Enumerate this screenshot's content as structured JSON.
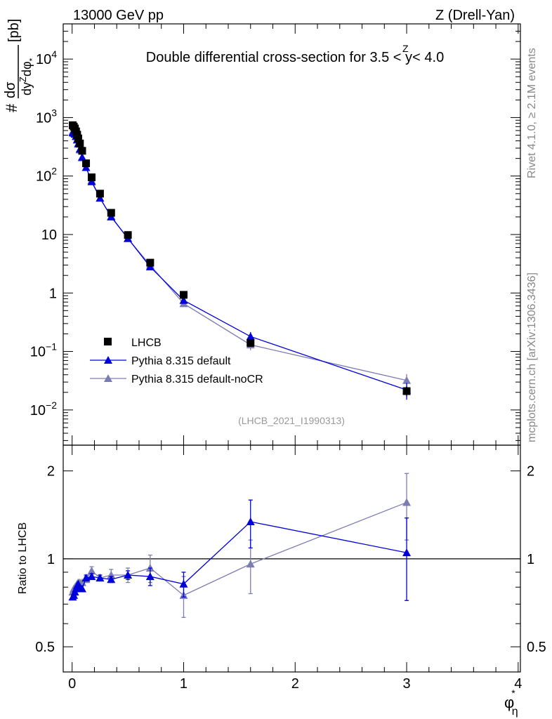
{
  "header": {
    "left": "13000 GeV pp",
    "right": "Z (Drell-Yan)"
  },
  "side_labels": {
    "rivet": "Rivet 4.1.0, ≥ 2.1M events",
    "mcplots": "mcplots.cern.ch [arXiv:1306.3436]"
  },
  "analysis_id": "(LHCB_2021_I1990313)",
  "colors": {
    "data": "#000000",
    "default": "#0000dd",
    "noCR": "#7c7cb4",
    "side_text": "#888888"
  },
  "chart_data": [
    {
      "type": "scatter",
      "scale": "log",
      "title": "Double differential cross-section for 3.5 < y^Z < 4.0",
      "title_parts": {
        "pre": "Double differential cross-section for 3.5 < ",
        "var": "y",
        "sup": "Z",
        "post": " < 4.0"
      },
      "ylabel": "d²σ / dy^Z dφ*_η [pb]",
      "ylabel_parts": {
        "num": "dσ",
        "den": "dy",
        "den_sup": "Z",
        "den_tail": "dφ",
        "den_sub": "*",
        "unit": "[pb]",
        "hash": "#"
      },
      "xlim": [
        -0.08,
        4.02
      ],
      "ylim": [
        0.0025,
        40000
      ],
      "y_ticks": [
        {
          "value": 0.01,
          "base": "10",
          "exp": "−2"
        },
        {
          "value": 0.1,
          "base": "10",
          "exp": "−1"
        },
        {
          "value": 1,
          "base": "1",
          "exp": ""
        },
        {
          "value": 10,
          "base": "10",
          "exp": ""
        },
        {
          "value": 100,
          "base": "10",
          "exp": "2"
        },
        {
          "value": 1000,
          "base": "10",
          "exp": "3"
        },
        {
          "value": 10000,
          "base": "10",
          "exp": "4"
        }
      ],
      "legend_position": "bottom-left",
      "series": [
        {
          "name": "LHCB",
          "marker": "square",
          "x": [
            0.005,
            0.015,
            0.025,
            0.035,
            0.045,
            0.055,
            0.07,
            0.09,
            0.125,
            0.175,
            0.25,
            0.35,
            0.5,
            0.7,
            1.0,
            1.6,
            3.0
          ],
          "y": [
            740,
            700,
            650,
            580,
            510,
            440,
            360,
            270,
            165,
            95,
            50,
            23.5,
            9.8,
            3.3,
            0.93,
            0.14,
            0.021
          ],
          "yerr": [
            0,
            0,
            0,
            0,
            0,
            0,
            0,
            0,
            0,
            0,
            0,
            0,
            0,
            0,
            0,
            0.02,
            0.004
          ]
        },
        {
          "name": "Pythia 8.315 default",
          "marker": "triangle",
          "x": [
            0.005,
            0.015,
            0.025,
            0.035,
            0.045,
            0.055,
            0.07,
            0.09,
            0.125,
            0.175,
            0.25,
            0.35,
            0.5,
            0.7,
            1.0,
            1.6,
            3.0
          ],
          "y": [
            550,
            540,
            520,
            480,
            420,
            360,
            290,
            210,
            140,
            80,
            42,
            20,
            8.6,
            2.8,
            0.75,
            0.18,
            0.022
          ],
          "yerr": [
            0,
            0,
            0,
            0,
            0,
            0,
            0,
            0,
            0,
            0,
            0,
            0,
            0,
            0,
            0.04,
            0.035,
            0.007
          ]
        },
        {
          "name": "Pythia 8.315 default-noCR",
          "marker": "triangle",
          "x": [
            0.005,
            0.015,
            0.025,
            0.035,
            0.045,
            0.055,
            0.07,
            0.09,
            0.125,
            0.175,
            0.25,
            0.35,
            0.5,
            0.7,
            1.0,
            1.6,
            3.0
          ],
          "y": [
            580,
            550,
            520,
            470,
            410,
            350,
            280,
            205,
            140,
            84,
            42,
            20.5,
            8.5,
            3.0,
            0.66,
            0.13,
            0.032
          ],
          "yerr": [
            0,
            0,
            0,
            0,
            0,
            0,
            0,
            0,
            0,
            0,
            0,
            0,
            0,
            0,
            0.03,
            0.025,
            0.009
          ]
        }
      ]
    },
    {
      "type": "line",
      "scale": "log",
      "ylabel": "Ratio to LHCB",
      "xlabel": "φ*_η",
      "xlabel_parts": {
        "main": "φ",
        "sup": "*",
        "sub": "η"
      },
      "xlim": [
        -0.08,
        4.02
      ],
      "ylim": [
        0.41,
        2.45
      ],
      "x_ticks": [
        "0",
        "1",
        "2",
        "3",
        "4"
      ],
      "x_tick_values": [
        0,
        1,
        2,
        3,
        4
      ],
      "y_ticks": [
        "0.5",
        "1",
        "2"
      ],
      "y_tick_values": [
        0.5,
        1,
        2
      ],
      "reference_line": 1,
      "series": [
        {
          "name": "Pythia 8.315 default",
          "x": [
            0.005,
            0.015,
            0.025,
            0.035,
            0.045,
            0.055,
            0.07,
            0.09,
            0.125,
            0.175,
            0.25,
            0.35,
            0.5,
            0.7,
            1.0,
            1.6,
            3.0
          ],
          "y": [
            0.74,
            0.75,
            0.77,
            0.79,
            0.81,
            0.82,
            0.8,
            0.79,
            0.86,
            0.87,
            0.86,
            0.85,
            0.88,
            0.87,
            0.82,
            1.34,
            1.05
          ],
          "yerr": [
            0.01,
            0.01,
            0.01,
            0.01,
            0.01,
            0.01,
            0.01,
            0.01,
            0.02,
            0.02,
            0.02,
            0.02,
            0.03,
            0.06,
            0.08,
            0.25,
            0.33
          ]
        },
        {
          "name": "Pythia 8.315 default-noCR",
          "x": [
            0.005,
            0.015,
            0.025,
            0.035,
            0.045,
            0.055,
            0.07,
            0.09,
            0.125,
            0.175,
            0.25,
            0.35,
            0.5,
            0.7,
            1.0,
            1.6,
            3.0
          ],
          "y": [
            0.77,
            0.79,
            0.8,
            0.81,
            0.82,
            0.83,
            0.83,
            0.83,
            0.85,
            0.91,
            0.86,
            0.88,
            0.88,
            0.93,
            0.75,
            0.96,
            1.56
          ],
          "yerr": [
            0.01,
            0.01,
            0.01,
            0.01,
            0.01,
            0.01,
            0.01,
            0.01,
            0.02,
            0.03,
            0.02,
            0.04,
            0.05,
            0.1,
            0.12,
            0.2,
            0.4
          ]
        }
      ]
    }
  ]
}
